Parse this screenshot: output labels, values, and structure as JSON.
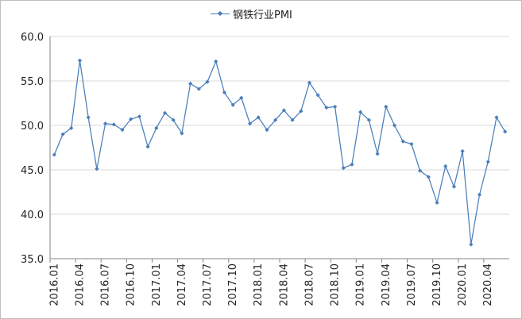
{
  "chart_data": {
    "type": "line",
    "title": "",
    "xlabel": "",
    "ylabel": "",
    "series": [
      {
        "name": "钢铁行业PMI",
        "values": [
          46.7,
          49.0,
          49.7,
          57.3,
          50.9,
          45.1,
          50.2,
          50.1,
          49.5,
          50.7,
          51.0,
          47.6,
          49.7,
          51.4,
          50.6,
          49.1,
          54.7,
          54.1,
          54.9,
          57.2,
          53.7,
          52.3,
          53.1,
          50.2,
          50.9,
          49.5,
          50.6,
          51.7,
          50.6,
          51.6,
          54.8,
          53.4,
          52.0,
          52.1,
          45.2,
          45.6,
          51.5,
          50.6,
          46.8,
          52.1,
          50.0,
          48.2,
          47.9,
          44.9,
          44.2,
          41.3,
          45.4,
          43.1,
          47.1,
          36.6,
          42.2,
          45.9,
          50.9,
          49.3
        ],
        "color": "#4a7ebb"
      }
    ],
    "x": [
      "2016.01",
      "2016.02",
      "2016.03",
      "2016.04",
      "2016.05",
      "2016.06",
      "2016.07",
      "2016.08",
      "2016.09",
      "2016.10",
      "2016.11",
      "2016.12",
      "2017.01",
      "2017.02",
      "2017.03",
      "2017.04",
      "2017.05",
      "2017.06",
      "2017.07",
      "2017.08",
      "2017.09",
      "2017.10",
      "2017.11",
      "2017.12",
      "2018.01",
      "2018.02",
      "2018.03",
      "2018.04",
      "2018.05",
      "2018.06",
      "2018.07",
      "2018.08",
      "2018.09",
      "2018.10",
      "2018.11",
      "2018.12",
      "2019.01",
      "2019.02",
      "2019.03",
      "2019.04",
      "2019.05",
      "2019.06",
      "2019.07",
      "2019.08",
      "2019.09",
      "2019.10",
      "2019.11",
      "2019.12",
      "2020.01",
      "2020.02",
      "2020.03",
      "2020.04",
      "2020.05",
      "2020.06"
    ],
    "x_tick_labels": [
      "2016.01",
      "2016.04",
      "2016.07",
      "2016.10",
      "2017.01",
      "2017.04",
      "2017.07",
      "2017.10",
      "2018.01",
      "2018.04",
      "2018.07",
      "2018.10",
      "2019.01",
      "2019.04",
      "2019.07",
      "2019.10",
      "2020.01",
      "2020.04"
    ],
    "y_ticks": [
      "35.0",
      "40.0",
      "45.0",
      "50.0",
      "55.0",
      "60.0"
    ],
    "ylim": [
      35,
      60
    ],
    "grid": "horizontal",
    "legend": "top-center",
    "grid_color": "#d9d9d9"
  }
}
